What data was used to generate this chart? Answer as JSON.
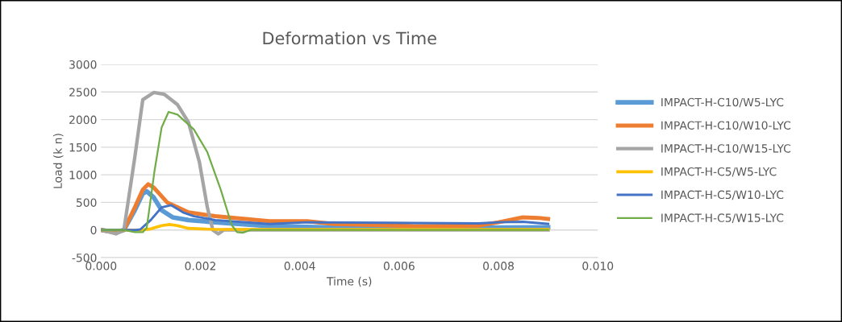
{
  "chart_data": {
    "type": "line",
    "title": "Deformation vs Time",
    "xlabel": "Time (s)",
    "ylabel": "Load (k n)",
    "xlim": [
      0,
      0.01
    ],
    "xticks": [
      {
        "value": 0,
        "label": "0.000"
      },
      {
        "value": 0.002,
        "label": "0.002"
      },
      {
        "value": 0.004,
        "label": "0.004"
      },
      {
        "value": 0.006,
        "label": "0.006"
      },
      {
        "value": 0.008,
        "label": "0.008"
      },
      {
        "value": 0.01,
        "label": "0.010"
      }
    ],
    "ylim": [
      -500,
      3000
    ],
    "yticks": [
      -500,
      0,
      500,
      1000,
      1500,
      2000,
      2500,
      3000
    ],
    "grid": "y",
    "legend": "right",
    "marker": "none",
    "line_style": "solid",
    "series": [
      {
        "name": "IMPACT-H-C10/W5-LYC",
        "color": "#5b9bd5",
        "x": [
          0,
          0.0003,
          0.00046,
          0.00068,
          0.00084,
          0.00092,
          0.00106,
          0.00122,
          0.00144,
          0.00176,
          0.0023,
          0.00339,
          0.0045,
          0.006,
          0.0075,
          0.009
        ],
        "values": [
          0,
          -40,
          0,
          360,
          660,
          700,
          590,
          360,
          230,
          180,
          140,
          70,
          50,
          40,
          40,
          50
        ]
      },
      {
        "name": "IMPACT-H-C10/W10-LYC",
        "color": "#ed7d31",
        "x": [
          0,
          0.0003,
          0.00046,
          0.00068,
          0.00084,
          0.00095,
          0.00106,
          0.00133,
          0.00176,
          0.0023,
          0.00339,
          0.00415,
          0.00468,
          0.0063,
          0.0076,
          0.008,
          0.00849,
          0.0088,
          0.009
        ],
        "values": [
          0,
          -50,
          0,
          410,
          730,
          830,
          770,
          500,
          320,
          250,
          160,
          160,
          110,
          70,
          80,
          140,
          230,
          220,
          200
        ]
      },
      {
        "name": "IMPACT-H-C10/W15-LYC",
        "color": "#a5a5a5",
        "x": [
          0,
          0.0003,
          0.00046,
          0.00068,
          0.00084,
          0.00106,
          0.00127,
          0.00154,
          0.00176,
          0.00198,
          0.00214,
          0.00225,
          0.00236,
          0.00247,
          0.0035,
          0.009
        ],
        "values": [
          0,
          -70,
          0,
          1320,
          2360,
          2490,
          2460,
          2270,
          1950,
          1230,
          410,
          0,
          -70,
          0,
          0,
          0
        ]
      },
      {
        "name": "IMPACT-H-C5/W5-LYC",
        "color": "#ffc000",
        "x": [
          0,
          0.0008,
          0.001,
          0.00122,
          0.00138,
          0.00154,
          0.00176,
          0.0023,
          0.009
        ],
        "values": [
          0,
          0,
          20,
          80,
          100,
          80,
          30,
          10,
          10
        ]
      },
      {
        "name": "IMPACT-H-C5/W10-LYC",
        "color": "#4472c4",
        "x": [
          0,
          0.0007,
          0.00079,
          0.001,
          0.00122,
          0.00141,
          0.00165,
          0.00187,
          0.0023,
          0.00339,
          0.00415,
          0.0058,
          0.0076,
          0.008,
          0.00849,
          0.009
        ],
        "values": [
          0,
          0,
          10,
          180,
          410,
          450,
          320,
          250,
          180,
          110,
          140,
          130,
          120,
          140,
          150,
          110
        ]
      },
      {
        "name": "IMPACT-H-C5/W15-LYC",
        "color": "#70ad47",
        "x": [
          0,
          0.00046,
          0.00068,
          0.00084,
          0.00092,
          0.00108,
          0.00122,
          0.00136,
          0.00154,
          0.00187,
          0.00214,
          0.00241,
          0.00263,
          0.00274,
          0.00285,
          0.00301,
          0.009
        ],
        "values": [
          0,
          0,
          -40,
          -40,
          40,
          1090,
          1860,
          2140,
          2090,
          1820,
          1410,
          730,
          90,
          -40,
          -50,
          0,
          0
        ]
      }
    ]
  }
}
